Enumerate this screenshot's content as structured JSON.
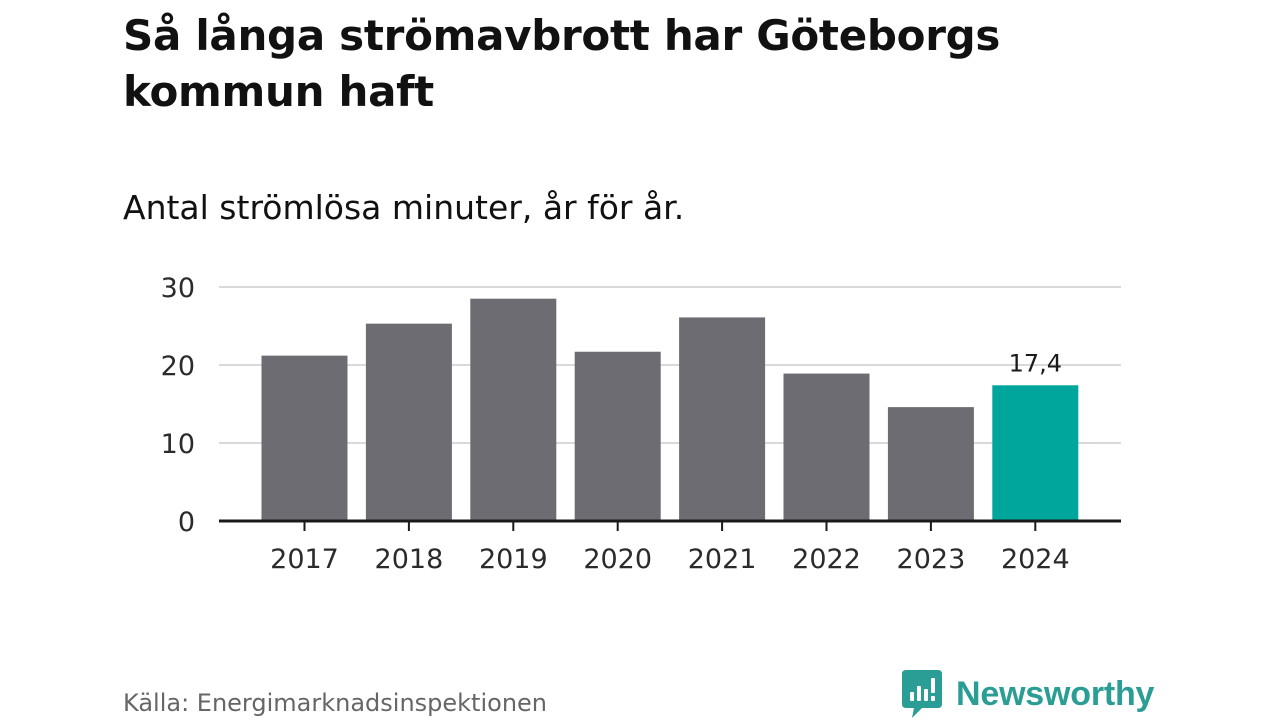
{
  "header": {
    "title": "Så långa strömavbrott har Göteborgs kommun haft",
    "subtitle": "Antal strömlösa minuter, år för år."
  },
  "footer": {
    "source": "Källa: Energimarknadsinspektionen",
    "brand": "Newsworthy"
  },
  "colors": {
    "bar": "#6d6c72",
    "highlight": "#00a69c",
    "grid": "#d9d9d9",
    "axis": "#1a1a1a",
    "brand": "#2a9d94"
  },
  "chart_data": {
    "type": "bar",
    "title": "Så långa strömavbrott har Göteborgs kommun haft",
    "subtitle": "Antal strömlösa minuter, år för år.",
    "xlabel": "",
    "ylabel": "",
    "categories": [
      "2017",
      "2018",
      "2019",
      "2020",
      "2021",
      "2022",
      "2023",
      "2024"
    ],
    "values": [
      21.2,
      25.3,
      28.5,
      21.7,
      26.1,
      18.9,
      14.6,
      17.4
    ],
    "highlight_index": 7,
    "data_labels": [
      {
        "index": 7,
        "text": "17,4"
      }
    ],
    "ylim": [
      0,
      30
    ],
    "yticks": [
      0,
      10,
      20,
      30
    ],
    "grid": true,
    "legend": "none"
  }
}
